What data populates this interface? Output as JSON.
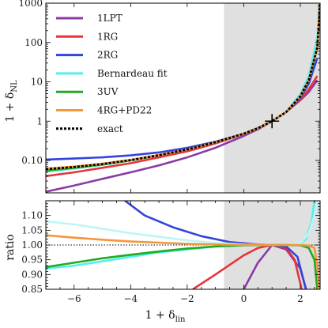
{
  "chart_data": [
    {
      "type": "line",
      "panel": "top",
      "xlim": [
        -7,
        2.7
      ],
      "ylim": [
        0.015,
        1000
      ],
      "yscale": "log",
      "ylabel_main": "1 + δ",
      "ylabel_sub": "NL",
      "yticks": [
        0.1,
        1,
        10,
        100,
        1000
      ],
      "ytick_labels": [
        "0.10",
        "1",
        "10",
        "100",
        "1000"
      ],
      "shaded_region_x": [
        -0.7,
        2.7
      ],
      "marker": {
        "x": 1,
        "y": 1,
        "symbol": "+"
      },
      "legend_position": "top-left",
      "series": [
        {
          "name": "1LPT",
          "color": "#8b3aa6",
          "dash": false,
          "x": [
            -7,
            -6,
            -5,
            -4,
            -3,
            -2,
            -1,
            0,
            0.5,
            1,
            1.5,
            2,
            2.3,
            2.6
          ],
          "y": [
            0.016,
            0.023,
            0.034,
            0.05,
            0.075,
            0.12,
            0.21,
            0.42,
            0.62,
            1.0,
            1.7,
            3.4,
            5.5,
            11
          ]
        },
        {
          "name": "1RG",
          "color": "#e8333a",
          "dash": false,
          "x": [
            -7,
            -6,
            -5,
            -4,
            -3,
            -2,
            -1,
            0,
            0.5,
            1,
            1.5,
            2,
            2.3,
            2.6
          ],
          "y": [
            0.04,
            0.05,
            0.065,
            0.085,
            0.12,
            0.17,
            0.27,
            0.47,
            0.66,
            1.0,
            1.7,
            3.5,
            6.5,
            14
          ]
        },
        {
          "name": "2RG",
          "color": "#3344dd",
          "dash": false,
          "x": [
            -7,
            -6,
            -5,
            -4,
            -3,
            -2,
            -1,
            0,
            0.5,
            1,
            1.5,
            2,
            2.3,
            2.6
          ],
          "y": [
            0.105,
            0.112,
            0.12,
            0.135,
            0.16,
            0.21,
            0.3,
            0.48,
            0.67,
            1.0,
            1.7,
            3.9,
            9,
            40
          ]
        },
        {
          "name": "Bernardeau fit",
          "color": "#55eeee",
          "dash": false,
          "x": [
            -7,
            -6,
            -5,
            -4,
            -3,
            -2,
            -1,
            0,
            0.5,
            1,
            1.5,
            2,
            2.3,
            2.6,
            2.7
          ],
          "y": [
            0.052,
            0.062,
            0.077,
            0.1,
            0.135,
            0.19,
            0.29,
            0.48,
            0.66,
            1.0,
            1.7,
            4.8,
            14,
            130,
            1000
          ]
        },
        {
          "name": "3UV",
          "color": "#22aa22",
          "dash": false,
          "x": [
            -7,
            -6,
            -5,
            -4,
            -3,
            -2,
            -1,
            0,
            0.5,
            1,
            1.5,
            2,
            2.3,
            2.6,
            2.7
          ],
          "y": [
            0.055,
            0.065,
            0.079,
            0.1,
            0.135,
            0.19,
            0.29,
            0.48,
            0.66,
            1.0,
            1.7,
            4.2,
            11,
            70,
            1000
          ]
        },
        {
          "name": "4RG+PD22",
          "color": "#f5963a",
          "dash": false,
          "x": [
            -7,
            -6,
            -5,
            -4,
            -3,
            -2,
            -1,
            0,
            0.5,
            1,
            1.5,
            2,
            2.3,
            2.6,
            2.7
          ],
          "y": [
            0.062,
            0.07,
            0.083,
            0.104,
            0.138,
            0.19,
            0.29,
            0.48,
            0.66,
            1.0,
            1.7,
            4.3,
            11,
            75,
            1000
          ]
        },
        {
          "name": "exact",
          "color": "#000000",
          "dash": true,
          "x": [
            -7,
            -6,
            -5,
            -4,
            -3,
            -2,
            -1,
            0,
            0.5,
            1,
            1.5,
            2,
            2.3,
            2.6,
            2.7
          ],
          "y": [
            0.06,
            0.068,
            0.081,
            0.102,
            0.136,
            0.19,
            0.29,
            0.48,
            0.66,
            1.0,
            1.7,
            4.3,
            11,
            75,
            1000
          ]
        }
      ]
    },
    {
      "type": "line",
      "panel": "bottom",
      "xlim": [
        -7,
        2.7
      ],
      "ylim": [
        0.85,
        1.15
      ],
      "xlabel_main": "1 + δ",
      "xlabel_sub": "lin",
      "ylabel": "ratio",
      "xticks": [
        -6,
        -4,
        -2,
        0,
        2
      ],
      "xtick_labels": [
        "−6",
        "−4",
        "−2",
        "0",
        "2"
      ],
      "yticks": [
        0.85,
        0.9,
        0.95,
        1.0,
        1.05,
        1.1
      ],
      "ytick_labels": [
        "0.85",
        "0.90",
        "0.95",
        "1.00",
        "1.05",
        "1.10"
      ],
      "reference_line_y": 1.0,
      "series": [
        {
          "name": "1LPT",
          "color": "#8b3aa6",
          "x": [
            0.0,
            0.5,
            1.0,
            1.5,
            2.0,
            2.2
          ],
          "y": [
            0.85,
            0.94,
            1.0,
            0.985,
            0.92,
            0.85
          ]
        },
        {
          "name": "1RG",
          "color": "#e8333a",
          "x": [
            -1.8,
            -1.0,
            0.0,
            0.5,
            1.0,
            1.5,
            1.8,
            2.05
          ],
          "y": [
            0.85,
            0.9,
            0.965,
            0.99,
            1.0,
            0.99,
            0.95,
            0.85
          ]
        },
        {
          "name": "2RG",
          "color": "#3344dd",
          "x": [
            -4.2,
            -3.5,
            -2.5,
            -1.5,
            -0.5,
            0.5,
            1.0,
            1.5,
            1.9,
            2.2
          ],
          "y": [
            1.15,
            1.1,
            1.06,
            1.03,
            1.01,
            1.002,
            1.0,
            0.995,
            0.96,
            0.85
          ]
        },
        {
          "name": "Bernardeau fit",
          "color": "#55eeee",
          "x": [
            -7,
            -6,
            -5,
            -4,
            -3,
            -2,
            -1,
            0,
            1,
            1.5,
            2.0,
            2.2,
            2.4,
            2.5
          ],
          "y": [
            0.92,
            0.93,
            0.945,
            0.96,
            0.975,
            0.985,
            0.995,
            0.999,
            1.0,
            1.0,
            1.004,
            1.02,
            1.08,
            1.15
          ]
        },
        {
          "name": "Bernardeau fit",
          "color": "#bff5f5",
          "x": [
            -7,
            -6,
            -5,
            -4,
            -3,
            -2,
            -1,
            0,
            1,
            1.5,
            2.0,
            2.3,
            2.5,
            2.6
          ],
          "y": [
            1.08,
            1.07,
            1.055,
            1.04,
            1.028,
            1.016,
            1.007,
            1.002,
            1.0,
            1.0,
            1.005,
            1.04,
            1.1,
            1.15
          ]
        },
        {
          "name": "3UV",
          "color": "#22aa22",
          "x": [
            -7,
            -6,
            -5,
            -4,
            -3,
            -2,
            -1,
            0,
            1,
            1.5,
            2.0,
            2.3,
            2.5,
            2.6
          ],
          "y": [
            0.925,
            0.94,
            0.955,
            0.967,
            0.978,
            0.988,
            0.995,
            0.999,
            1.0,
            1.0,
            0.999,
            0.99,
            0.95,
            0.85
          ]
        },
        {
          "name": "4RG+PD22",
          "color": "#f5963a",
          "x": [
            -7,
            -6,
            -5,
            -4,
            -3,
            -2,
            -1,
            0,
            1,
            1.5,
            2.0,
            2.3,
            2.5,
            2.6,
            2.65
          ],
          "y": [
            1.033,
            1.025,
            1.018,
            1.012,
            1.008,
            1.004,
            1.002,
            1.0,
            1.0,
            1.0,
            1.0,
            0.998,
            0.99,
            0.93,
            0.85
          ]
        }
      ]
    }
  ]
}
